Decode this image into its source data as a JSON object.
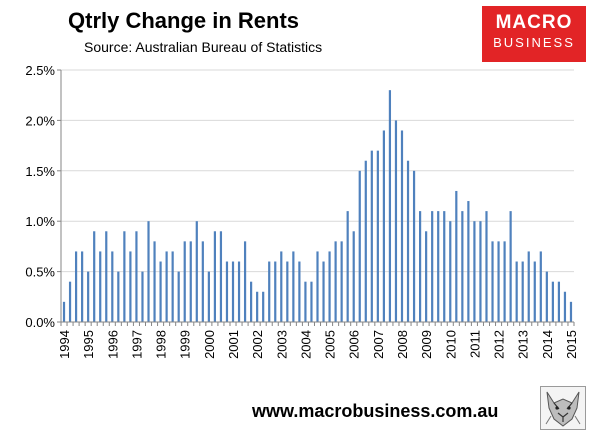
{
  "header": {
    "title": "Qtrly Change in Rents",
    "subtitle": "Source: Australian Bureau of Statistics"
  },
  "logo": {
    "line1": "MACRO",
    "line2": "BUSINESS",
    "color": "#e22426"
  },
  "footer": {
    "url": "www.macrobusiness.com.au"
  },
  "colors": {
    "bar": "#4f81bd",
    "axis": "#868686",
    "grid": "#d9d9d9"
  },
  "chart_data": {
    "type": "bar",
    "title": "Qtrly Change in Rents",
    "subtitle": "Source: Australian Bureau of Statistics",
    "xlabel": "",
    "ylabel": "",
    "ylim": [
      0,
      2.5
    ],
    "y_ticks": [
      0,
      0.5,
      1.0,
      1.5,
      2.0,
      2.5
    ],
    "y_tick_labels": [
      "0.0%",
      "0.5%",
      "1.0%",
      "1.5%",
      "2.0%",
      "2.5%"
    ],
    "x_tick_labels": [
      "1994",
      "1995",
      "1996",
      "1997",
      "1998",
      "1999",
      "2000",
      "2001",
      "2002",
      "2003",
      "2004",
      "2005",
      "2006",
      "2007",
      "2008",
      "2009",
      "2010",
      "2011",
      "2012",
      "2013",
      "2014",
      "2015"
    ],
    "first_quarter": "1994-Q1",
    "values": [
      0.2,
      0.4,
      0.7,
      0.7,
      0.5,
      0.9,
      0.7,
      0.9,
      0.7,
      0.5,
      0.9,
      0.7,
      0.9,
      0.5,
      1.0,
      0.8,
      0.6,
      0.7,
      0.7,
      0.5,
      0.8,
      0.8,
      1.0,
      0.8,
      0.5,
      0.9,
      0.9,
      0.6,
      0.6,
      0.6,
      0.8,
      0.4,
      0.3,
      0.3,
      0.6,
      0.6,
      0.7,
      0.6,
      0.7,
      0.6,
      0.4,
      0.4,
      0.7,
      0.6,
      0.7,
      0.8,
      0.8,
      1.1,
      0.9,
      1.5,
      1.6,
      1.7,
      1.7,
      1.9,
      2.3,
      2.0,
      1.9,
      1.6,
      1.5,
      1.1,
      0.9,
      1.1,
      1.1,
      1.1,
      1.0,
      1.3,
      1.1,
      1.2,
      1.0,
      1.0,
      1.1,
      0.8,
      0.8,
      0.8,
      1.1,
      0.6,
      0.6,
      0.7,
      0.6,
      0.7,
      0.5,
      0.4,
      0.4,
      0.3,
      0.2
    ],
    "grid": true,
    "legend": "none"
  }
}
